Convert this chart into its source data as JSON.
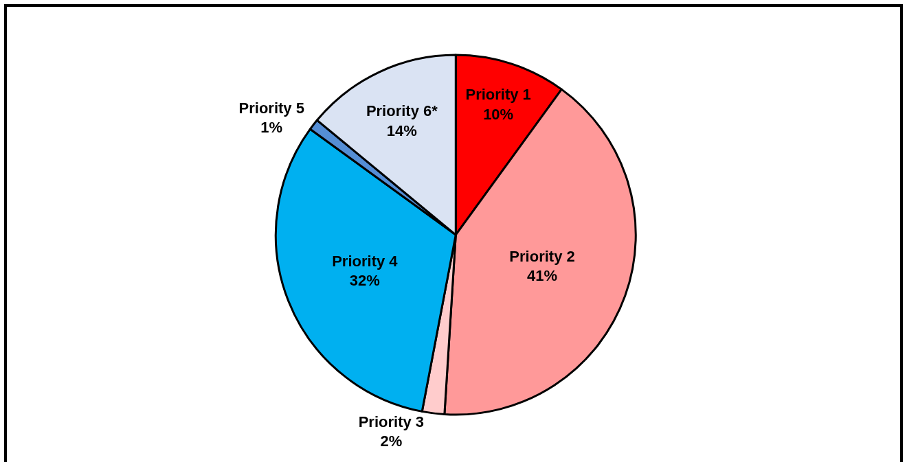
{
  "chart_data": {
    "type": "pie",
    "categories": [
      "Priority 1",
      "Priority 2",
      "Priority 3",
      "Priority 4",
      "Priority 5",
      "Priority 6*"
    ],
    "values": [
      10,
      41,
      2,
      32,
      1,
      14
    ],
    "value_labels": [
      "10%",
      "41%",
      "2%",
      "32%",
      "1%",
      "14%"
    ],
    "colors": [
      "#ff0000",
      "#ff9999",
      "#ffcccc",
      "#00b0f0",
      "#558ed5",
      "#dae3f3"
    ],
    "legend": false
  }
}
